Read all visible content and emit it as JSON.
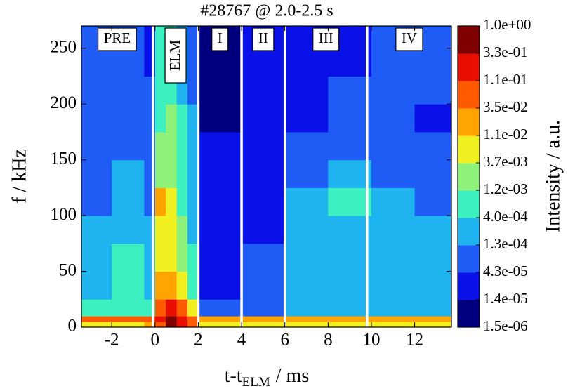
{
  "chart_data": {
    "type": "contour",
    "title": "#28767 @ 2.0-2.5 s",
    "xlabel": {
      "main": "t-t",
      "sub": "ELM",
      "rest": "/ ms"
    },
    "ylabel": "f / kHz",
    "colorbar_label": "Intensity / a.u.",
    "xlim": [
      -3.4,
      13.7
    ],
    "ylim": [
      0,
      270
    ],
    "xticks": [
      -2,
      0,
      2,
      4,
      6,
      8,
      10,
      12
    ],
    "yticks": [
      0,
      50,
      100,
      150,
      200,
      250
    ],
    "x_edges": [
      -3.4,
      -2,
      -0.5,
      0,
      0.5,
      1,
      1.5,
      2,
      4,
      6,
      8,
      10,
      12,
      13.7
    ],
    "y_edges": [
      0,
      5,
      10,
      25,
      50,
      75,
      100,
      125,
      150,
      175,
      200,
      225,
      270
    ],
    "z": [
      [
        0.006,
        0.006,
        0.02,
        0.06,
        0.5,
        0.2,
        0.06,
        0.006,
        0.006,
        0.006,
        0.006,
        0.006,
        0.006
      ],
      [
        0.06,
        0.06,
        0.06,
        0.2,
        0.5,
        0.2,
        0.06,
        0.02,
        0.02,
        0.02,
        0.02,
        0.02,
        0.02
      ],
      [
        0.0008,
        0.0008,
        0.0008,
        0.06,
        0.2,
        0.06,
        0.006,
        8e-05,
        8e-05,
        0.00025,
        0.00025,
        0.00025,
        0.00025
      ],
      [
        0.00025,
        0.0008,
        0.00025,
        0.02,
        0.02,
        0.006,
        0.0008,
        2.5e-05,
        8e-05,
        0.00025,
        0.00025,
        0.00025,
        0.00025
      ],
      [
        0.00025,
        0.0008,
        0.00025,
        0.006,
        0.006,
        0.002,
        0.0008,
        2.5e-05,
        8e-05,
        0.00025,
        0.00025,
        0.00025,
        0.00025
      ],
      [
        0.00025,
        0.00025,
        0.00025,
        0.006,
        0.006,
        0.002,
        0.00025,
        2.5e-05,
        2.5e-05,
        0.00025,
        0.00025,
        0.00025,
        0.00025
      ],
      [
        8e-05,
        0.00025,
        8e-05,
        0.02,
        0.006,
        0.0008,
        0.00025,
        2.5e-05,
        2.5e-05,
        0.00025,
        0.0008,
        0.00025,
        8e-05
      ],
      [
        8e-05,
        0.00025,
        8e-05,
        0.002,
        0.002,
        0.0008,
        0.00025,
        2.5e-05,
        2.5e-05,
        8e-05,
        0.00025,
        8e-05,
        8e-05
      ],
      [
        8e-05,
        8e-05,
        8e-05,
        0.002,
        0.002,
        0.0008,
        0.00025,
        2.5e-05,
        2.5e-05,
        8e-05,
        8e-05,
        8e-05,
        8e-05
      ],
      [
        8e-05,
        8e-05,
        8e-05,
        0.0008,
        0.002,
        0.0008,
        0.00025,
        5e-06,
        2.5e-05,
        2.5e-05,
        8e-05,
        8e-05,
        2.5e-05
      ],
      [
        8e-05,
        8e-05,
        8e-05,
        0.0008,
        0.0008,
        0.00025,
        8e-05,
        5e-06,
        2.5e-05,
        2.5e-05,
        8e-05,
        8e-05,
        8e-05
      ],
      [
        8e-05,
        8e-05,
        2.5e-05,
        0.0008,
        0.0008,
        0.00025,
        8e-05,
        5e-06,
        2.5e-05,
        2.5e-05,
        2.5e-05,
        8e-05,
        8e-05
      ]
    ],
    "levels": [
      {
        "value": 1.0,
        "label": "1.0e+00"
      },
      {
        "value": 0.33,
        "label": "3.3e-01"
      },
      {
        "value": 0.11,
        "label": "1.1e-01"
      },
      {
        "value": 0.035,
        "label": "3.5e-02"
      },
      {
        "value": 0.011,
        "label": "1.1e-02"
      },
      {
        "value": 0.0037,
        "label": "3.7e-03"
      },
      {
        "value": 0.0012,
        "label": "1.2e-03"
      },
      {
        "value": 0.0004,
        "label": "4.0e-04"
      },
      {
        "value": 0.00013,
        "label": "1.3e-04"
      },
      {
        "value": 4.3e-05,
        "label": "4.3e-05"
      },
      {
        "value": 1.4e-05,
        "label": "1.4e-05"
      },
      {
        "value": 1.5e-06,
        "label": "1.5e-06"
      }
    ],
    "level_colors": [
      "#00007f",
      "#0a10e8",
      "#1e5cf5",
      "#1fb4f0",
      "#3cf0c0",
      "#8ef27a",
      "#f0f020",
      "#ffa400",
      "#ff5a00",
      "#e80e00",
      "#7f0000"
    ],
    "phase_labels": [
      "PRE",
      "ELM",
      "I",
      "II",
      "III",
      "IV"
    ],
    "phase_boundaries": [
      -0.1,
      2,
      4,
      6,
      9.8
    ],
    "boundary_color": "#ffffff"
  }
}
